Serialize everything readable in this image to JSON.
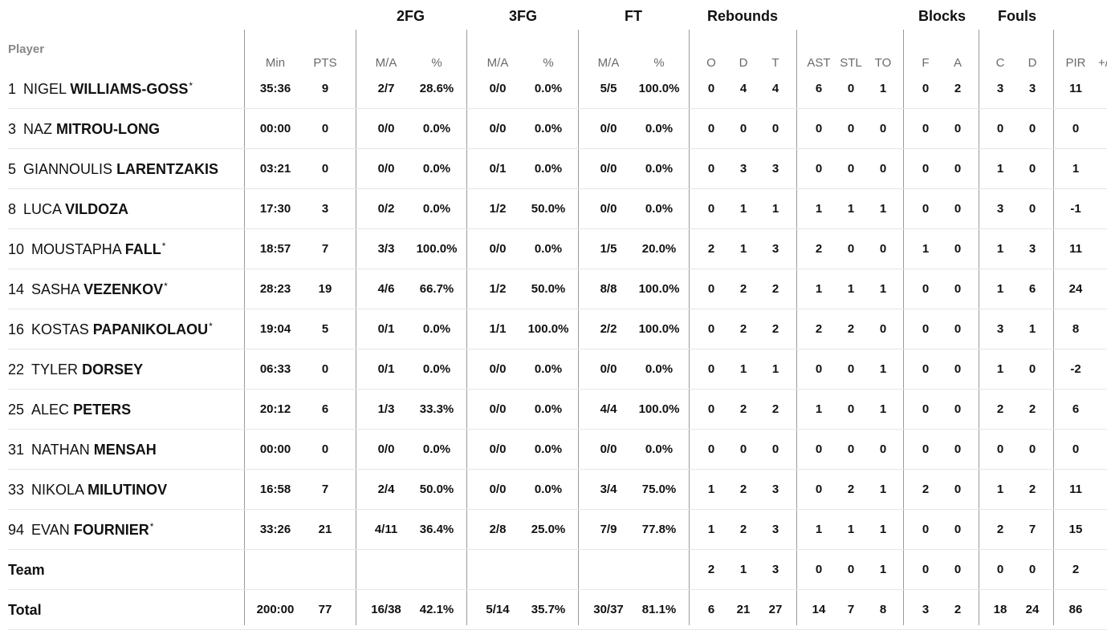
{
  "headers": {
    "player": "Player",
    "groups": {
      "twofg": "2FG",
      "threefg": "3FG",
      "ft": "FT",
      "rebounds": "Rebounds",
      "blocks": "Blocks",
      "fouls": "Fouls"
    },
    "sub": {
      "min": "Min",
      "pts": "PTS",
      "fg2_ma": "M/A",
      "fg2_pct": "%",
      "fg3_ma": "M/A",
      "fg3_pct": "%",
      "ft_ma": "M/A",
      "ft_pct": "%",
      "o": "O",
      "d": "D",
      "t": "T",
      "ast": "AST",
      "stl": "STL",
      "to": "TO",
      "bf": "F",
      "ba": "A",
      "fc": "C",
      "fd": "D",
      "pir": "PIR",
      "pm": "+/"
    }
  },
  "rows": [
    {
      "num": "1",
      "first": "NIGEL",
      "last": "WILLIAMS-GOSS",
      "star": "*",
      "min": "35:36",
      "pts": "9",
      "fg2": "2/7",
      "fg2p": "28.6%",
      "fg3": "0/0",
      "fg3p": "0.0%",
      "ft": "5/5",
      "ftp": "100.0%",
      "o": "0",
      "d": "4",
      "t": "4",
      "ast": "6",
      "stl": "0",
      "to": "1",
      "bf": "0",
      "ba": "2",
      "fc": "3",
      "fd": "3",
      "pir": "11"
    },
    {
      "num": "3",
      "first": "NAZ",
      "last": "MITROU-LONG",
      "star": "",
      "min": "00:00",
      "pts": "0",
      "fg2": "0/0",
      "fg2p": "0.0%",
      "fg3": "0/0",
      "fg3p": "0.0%",
      "ft": "0/0",
      "ftp": "0.0%",
      "o": "0",
      "d": "0",
      "t": "0",
      "ast": "0",
      "stl": "0",
      "to": "0",
      "bf": "0",
      "ba": "0",
      "fc": "0",
      "fd": "0",
      "pir": "0"
    },
    {
      "num": "5",
      "first": "GIANNOULIS",
      "last": "LARENTZAKIS",
      "star": "",
      "min": "03:21",
      "pts": "0",
      "fg2": "0/0",
      "fg2p": "0.0%",
      "fg3": "0/1",
      "fg3p": "0.0%",
      "ft": "0/0",
      "ftp": "0.0%",
      "o": "0",
      "d": "3",
      "t": "3",
      "ast": "0",
      "stl": "0",
      "to": "0",
      "bf": "0",
      "ba": "0",
      "fc": "1",
      "fd": "0",
      "pir": "1"
    },
    {
      "num": "8",
      "first": "LUCA",
      "last": "VILDOZA",
      "star": "",
      "min": "17:30",
      "pts": "3",
      "fg2": "0/2",
      "fg2p": "0.0%",
      "fg3": "1/2",
      "fg3p": "50.0%",
      "ft": "0/0",
      "ftp": "0.0%",
      "o": "0",
      "d": "1",
      "t": "1",
      "ast": "1",
      "stl": "1",
      "to": "1",
      "bf": "0",
      "ba": "0",
      "fc": "3",
      "fd": "0",
      "pir": "-1"
    },
    {
      "num": "10",
      "first": "MOUSTAPHA",
      "last": "FALL",
      "star": "*",
      "min": "18:57",
      "pts": "7",
      "fg2": "3/3",
      "fg2p": "100.0%",
      "fg3": "0/0",
      "fg3p": "0.0%",
      "ft": "1/5",
      "ftp": "20.0%",
      "o": "2",
      "d": "1",
      "t": "3",
      "ast": "2",
      "stl": "0",
      "to": "0",
      "bf": "1",
      "ba": "0",
      "fc": "1",
      "fd": "3",
      "pir": "11"
    },
    {
      "num": "14",
      "first": "SASHA",
      "last": "VEZENKOV",
      "star": "*",
      "min": "28:23",
      "pts": "19",
      "fg2": "4/6",
      "fg2p": "66.7%",
      "fg3": "1/2",
      "fg3p": "50.0%",
      "ft": "8/8",
      "ftp": "100.0%",
      "o": "0",
      "d": "2",
      "t": "2",
      "ast": "1",
      "stl": "1",
      "to": "1",
      "bf": "0",
      "ba": "0",
      "fc": "1",
      "fd": "6",
      "pir": "24"
    },
    {
      "num": "16",
      "first": "KOSTAS",
      "last": "PAPANIKOLAOU",
      "star": "*",
      "min": "19:04",
      "pts": "5",
      "fg2": "0/1",
      "fg2p": "0.0%",
      "fg3": "1/1",
      "fg3p": "100.0%",
      "ft": "2/2",
      "ftp": "100.0%",
      "o": "0",
      "d": "2",
      "t": "2",
      "ast": "2",
      "stl": "2",
      "to": "0",
      "bf": "0",
      "ba": "0",
      "fc": "3",
      "fd": "1",
      "pir": "8"
    },
    {
      "num": "22",
      "first": "TYLER",
      "last": "DORSEY",
      "star": "",
      "min": "06:33",
      "pts": "0",
      "fg2": "0/1",
      "fg2p": "0.0%",
      "fg3": "0/0",
      "fg3p": "0.0%",
      "ft": "0/0",
      "ftp": "0.0%",
      "o": "0",
      "d": "1",
      "t": "1",
      "ast": "0",
      "stl": "0",
      "to": "1",
      "bf": "0",
      "ba": "0",
      "fc": "1",
      "fd": "0",
      "pir": "-2"
    },
    {
      "num": "25",
      "first": "ALEC",
      "last": "PETERS",
      "star": "",
      "min": "20:12",
      "pts": "6",
      "fg2": "1/3",
      "fg2p": "33.3%",
      "fg3": "0/0",
      "fg3p": "0.0%",
      "ft": "4/4",
      "ftp": "100.0%",
      "o": "0",
      "d": "2",
      "t": "2",
      "ast": "1",
      "stl": "0",
      "to": "1",
      "bf": "0",
      "ba": "0",
      "fc": "2",
      "fd": "2",
      "pir": "6"
    },
    {
      "num": "31",
      "first": "NATHAN",
      "last": "MENSAH",
      "star": "",
      "min": "00:00",
      "pts": "0",
      "fg2": "0/0",
      "fg2p": "0.0%",
      "fg3": "0/0",
      "fg3p": "0.0%",
      "ft": "0/0",
      "ftp": "0.0%",
      "o": "0",
      "d": "0",
      "t": "0",
      "ast": "0",
      "stl": "0",
      "to": "0",
      "bf": "0",
      "ba": "0",
      "fc": "0",
      "fd": "0",
      "pir": "0"
    },
    {
      "num": "33",
      "first": "NIKOLA",
      "last": "MILUTINOV",
      "star": "",
      "min": "16:58",
      "pts": "7",
      "fg2": "2/4",
      "fg2p": "50.0%",
      "fg3": "0/0",
      "fg3p": "0.0%",
      "ft": "3/4",
      "ftp": "75.0%",
      "o": "1",
      "d": "2",
      "t": "3",
      "ast": "0",
      "stl": "2",
      "to": "1",
      "bf": "2",
      "ba": "0",
      "fc": "1",
      "fd": "2",
      "pir": "11"
    },
    {
      "num": "94",
      "first": "EVAN",
      "last": "FOURNIER",
      "star": "*",
      "min": "33:26",
      "pts": "21",
      "fg2": "4/11",
      "fg2p": "36.4%",
      "fg3": "2/8",
      "fg3p": "25.0%",
      "ft": "7/9",
      "ftp": "77.8%",
      "o": "1",
      "d": "2",
      "t": "3",
      "ast": "1",
      "stl": "1",
      "to": "1",
      "bf": "0",
      "ba": "0",
      "fc": "2",
      "fd": "7",
      "pir": "15"
    },
    {
      "num": "",
      "first": "",
      "last": "Team",
      "star": "",
      "min": "",
      "pts": "",
      "fg2": "",
      "fg2p": "",
      "fg3": "",
      "fg3p": "",
      "ft": "",
      "ftp": "",
      "o": "2",
      "d": "1",
      "t": "3",
      "ast": "0",
      "stl": "0",
      "to": "1",
      "bf": "0",
      "ba": "0",
      "fc": "0",
      "fd": "0",
      "pir": "2"
    },
    {
      "num": "",
      "first": "",
      "last": "Total",
      "star": "",
      "min": "200:00",
      "pts": "77",
      "fg2": "16/38",
      "fg2p": "42.1%",
      "fg3": "5/14",
      "fg3p": "35.7%",
      "ft": "30/37",
      "ftp": "81.1%",
      "o": "6",
      "d": "21",
      "t": "27",
      "ast": "14",
      "stl": "7",
      "to": "8",
      "bf": "3",
      "ba": "2",
      "fc": "18",
      "fd": "24",
      "pir": "86"
    }
  ]
}
